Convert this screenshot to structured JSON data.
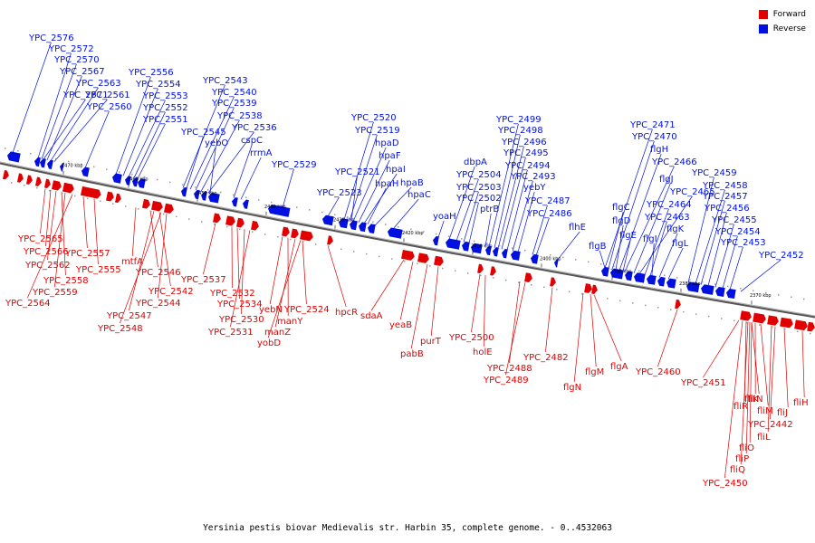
{
  "legend": {
    "forward_label": "Forward",
    "reverse_label": "Reverse",
    "forward_color": "#e00000",
    "reverse_color": "#0010e0"
  },
  "caption": "Yersinia pestis biovar Medievalis str. Harbin 35, complete genome. - 0..4532063",
  "scale_ticks": [
    "2470 kbp",
    "2460 kbp",
    "2450 kbp",
    "2440 kbp",
    "2430 kbp",
    "2420 kbp",
    "2410 kbp",
    "2400 kbp",
    "2390 kbp",
    "2380 kbp",
    "2370 kbp"
  ],
  "reverse_labels": [
    "YPC_2576",
    "YPC_2572",
    "YPC_2570",
    "YPC_2567",
    "YPC_2563",
    "YPC_2571",
    "YPC_2561",
    "YPC_2560",
    "YPC_2556",
    "YPC_2554",
    "YPC_2553",
    "YPC_2552",
    "YPC_2551",
    "YPC_2543",
    "YPC_2540",
    "YPC_2539",
    "YPC_2538",
    "YPC_2536",
    "YPC_2545",
    "yebO",
    "cspC",
    "rrmA",
    "YPC_2529",
    "YPC_2520",
    "YPC_2519",
    "hpaD",
    "hpaF",
    "hpaI",
    "YPC_2521",
    "hpaH",
    "hpaB",
    "YPC_2523",
    "hpaC",
    "yoaH",
    "dbpA",
    "YPC_2504",
    "YPC_2503",
    "YPC_2502",
    "ptrB",
    "YPC_2499",
    "YPC_2498",
    "YPC_2496",
    "YPC_2495",
    "YPC_2494",
    "YPC_2493",
    "yebY",
    "YPC_2487",
    "YPC_2486",
    "flhE",
    "YPC_2471",
    "YPC_2470",
    "flgH",
    "YPC_2466",
    "flgJ",
    "YPC_2465",
    "YPC_2464",
    "YPC_2463",
    "flgC",
    "flgD",
    "flgE",
    "flgI",
    "flgK",
    "flgL",
    "flgB",
    "YPC_2459",
    "YPC_2458",
    "YPC_2457",
    "YPC_2456",
    "YPC_2455",
    "YPC_2454",
    "YPC_2453",
    "YPC_2452"
  ],
  "forward_labels": [
    "YPC_2565",
    "YPC_2566",
    "YPC_2562",
    "YPC_2558",
    "YPC_2559",
    "YPC_2564",
    "YPC_2557",
    "YPC_2555",
    "mtfA",
    "YPC_2546",
    "YPC_2542",
    "YPC_2544",
    "YPC_2547",
    "YPC_2548",
    "YPC_2537",
    "YPC_2532",
    "YPC_2534",
    "YPC_2530",
    "YPC_2531",
    "yebN",
    "manY",
    "manZ",
    "yobD",
    "YPC_2524",
    "hpcR",
    "sdaA",
    "yeaB",
    "pabB",
    "purT",
    "YPC_2500",
    "holE",
    "YPC_2488",
    "YPC_2489",
    "YPC_2482",
    "flgN",
    "flgM",
    "flgA",
    "YPC_2460",
    "YPC_2451",
    "fliH",
    "fliK",
    "fliN",
    "fliJ",
    "fliM",
    "fliR",
    "YPC_2442",
    "fliL",
    "fliO",
    "fliP",
    "fliQ",
    "YPC_2450"
  ]
}
